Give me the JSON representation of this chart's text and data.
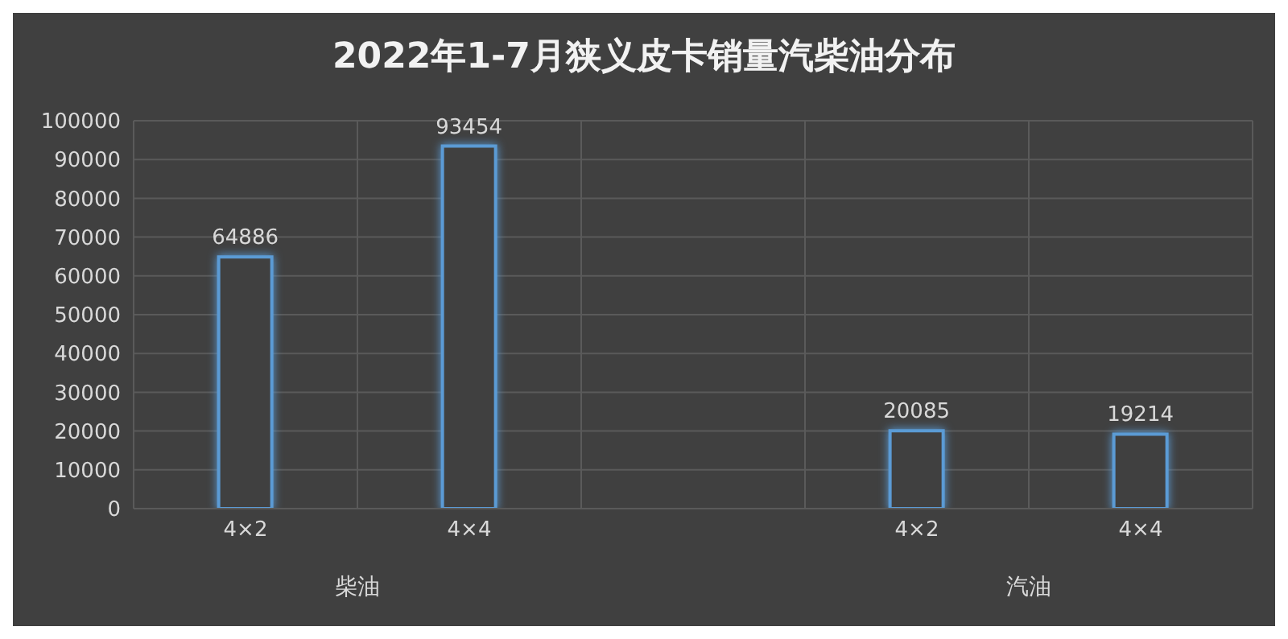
{
  "chart_data": {
    "type": "bar",
    "title": "2022年1-7月狭义皮卡销量汽柴油分布",
    "categories": [
      "4×2",
      "4×4",
      null,
      "4×2",
      "4×4"
    ],
    "values": [
      64886,
      93454,
      null,
      20085,
      19214
    ],
    "color": "#5b9bd5",
    "ylim": [
      0,
      100000
    ],
    "yticks": [
      0,
      10000,
      20000,
      30000,
      40000,
      50000,
      60000,
      70000,
      80000,
      90000,
      100000
    ],
    "grid": true,
    "data_labels": true,
    "annotations": [
      "柴油",
      "汽油"
    ]
  }
}
